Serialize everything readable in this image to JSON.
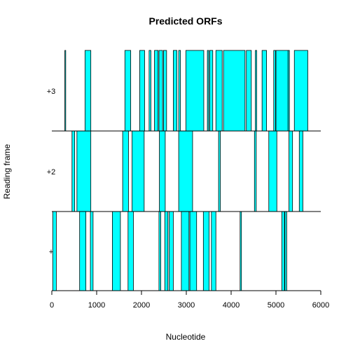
{
  "chart_data": {
    "type": "bar",
    "title": "Predicted ORFs",
    "xlabel": "Nucleotide",
    "ylabel": "Reading frame",
    "xlim": [
      0,
      6000
    ],
    "x_ticks": [
      0,
      1000,
      2000,
      3000,
      4000,
      5000,
      6000
    ],
    "frame_fill_color": "#00FFFF",
    "frames": [
      {
        "label": "+3",
        "orfs": [
          [
            290,
            310
          ],
          [
            740,
            870
          ],
          [
            1630,
            1760
          ],
          [
            1960,
            2070
          ],
          [
            2170,
            2210
          ],
          [
            2290,
            2370
          ],
          [
            2390,
            2470
          ],
          [
            2490,
            2560
          ],
          [
            2710,
            2790
          ],
          [
            2830,
            2870
          ],
          [
            2990,
            3390
          ],
          [
            3470,
            3500
          ],
          [
            3520,
            3590
          ],
          [
            3660,
            3800
          ],
          [
            3830,
            4310
          ],
          [
            4340,
            4450
          ],
          [
            4540,
            4570
          ],
          [
            4690,
            4790
          ],
          [
            4950,
            4990
          ],
          [
            5000,
            5270
          ],
          [
            5270,
            5300
          ],
          [
            5410,
            5710
          ]
        ]
      },
      {
        "label": "+2",
        "orfs": [
          [
            450,
            510
          ],
          [
            560,
            870
          ],
          [
            1580,
            1710
          ],
          [
            1790,
            2060
          ],
          [
            2400,
            2530
          ],
          [
            2830,
            3140
          ],
          [
            3720,
            3760
          ],
          [
            4520,
            4560
          ],
          [
            4840,
            5020
          ],
          [
            5290,
            5370
          ],
          [
            5520,
            5600
          ]
        ]
      },
      {
        "label": "+",
        "orfs": [
          [
            20,
            100
          ],
          [
            620,
            760
          ],
          [
            860,
            920
          ],
          [
            1350,
            1530
          ],
          [
            1700,
            1820
          ],
          [
            2390,
            2430
          ],
          [
            2520,
            2590
          ],
          [
            2620,
            2710
          ],
          [
            2890,
            3060
          ],
          [
            3080,
            3230
          ],
          [
            3380,
            3510
          ],
          [
            3560,
            3660
          ],
          [
            4200,
            4230
          ],
          [
            5130,
            5190
          ],
          [
            5200,
            5240
          ]
        ]
      }
    ]
  }
}
